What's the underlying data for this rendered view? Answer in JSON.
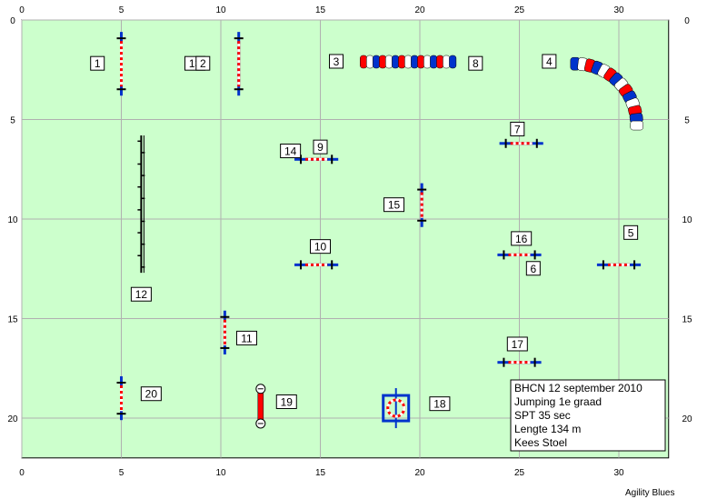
{
  "course": {
    "field_color": "#ccffcc",
    "grid_color": "#b0b0b0",
    "axis_range": {
      "x": [
        0,
        32.5
      ],
      "y": [
        0,
        22
      ]
    },
    "x_ticks": [
      0,
      5,
      10,
      15,
      20,
      25,
      30
    ],
    "y_ticks": [
      0,
      5,
      10,
      15,
      20
    ],
    "colors": {
      "post": "#0033cc",
      "red": "#ff0000",
      "white": "#ffffff",
      "ring_frame": "#0033cc"
    },
    "obstacles": [
      {
        "id": "1",
        "type": "jump",
        "x": 5.0,
        "y": 2.2,
        "orient": "v",
        "len": 3.2
      },
      {
        "id": "2",
        "type": "jump",
        "x": 10.9,
        "y": 2.2,
        "orient": "v",
        "len": 3.2
      },
      {
        "id": "3",
        "type": "tunnel_straight",
        "x1": 17.0,
        "x2": 21.8,
        "y": 2.1
      },
      {
        "id": "4",
        "type": "tunnel_curved",
        "cx": 27.8,
        "cy": 5.3,
        "r": 3.1
      },
      {
        "id": "5",
        "type": "jump",
        "x": 30.0,
        "y": 12.3,
        "orient": "h",
        "len": 2.2
      },
      {
        "id": "7",
        "type": "jump",
        "x": 25.1,
        "y": 6.2,
        "orient": "h",
        "len": 2.2
      },
      {
        "id": "9",
        "type": "jump",
        "x": 14.8,
        "y": 7.0,
        "orient": "h",
        "len": 2.2
      },
      {
        "id": "10",
        "type": "jump",
        "x": 14.8,
        "y": 12.3,
        "orient": "h",
        "len": 2.2
      },
      {
        "id": "11",
        "type": "jump",
        "x": 10.2,
        "y": 15.7,
        "orient": "v",
        "len": 2.2
      },
      {
        "id": "12",
        "type": "weave",
        "x": 6.0,
        "y1": 5.8,
        "y2": 12.7
      },
      {
        "id": "15",
        "type": "jump",
        "x": 20.1,
        "y": 9.3,
        "orient": "v",
        "len": 2.2
      },
      {
        "id": "16",
        "type": "jump",
        "x": 25.0,
        "y": 11.8,
        "orient": "h",
        "len": 2.2
      },
      {
        "id": "17",
        "type": "jump",
        "x": 25.0,
        "y": 17.2,
        "orient": "h",
        "len": 2.2
      },
      {
        "id": "18",
        "type": "tire",
        "x": 18.8,
        "y": 19.5
      },
      {
        "id": "19",
        "type": "table",
        "x": 12.0,
        "y1": 18.3,
        "y2": 20.5
      },
      {
        "id": "20",
        "type": "jump",
        "x": 5.0,
        "y": 19.0,
        "orient": "v",
        "len": 2.2
      }
    ],
    "labels": [
      {
        "text": "1",
        "x": 3.8,
        "y": 2.2
      },
      {
        "text": "13",
        "x": 8.7,
        "y": 2.2
      },
      {
        "text": "2",
        "x": 9.1,
        "y": 2.2
      },
      {
        "text": "3",
        "x": 15.8,
        "y": 2.1
      },
      {
        "text": "8",
        "x": 22.8,
        "y": 2.2
      },
      {
        "text": "4",
        "x": 26.5,
        "y": 2.1
      },
      {
        "text": "7",
        "x": 24.9,
        "y": 5.5
      },
      {
        "text": "14",
        "x": 13.5,
        "y": 6.6
      },
      {
        "text": "9",
        "x": 15.0,
        "y": 6.4
      },
      {
        "text": "15",
        "x": 18.7,
        "y": 9.3
      },
      {
        "text": "10",
        "x": 15.0,
        "y": 11.4
      },
      {
        "text": "16",
        "x": 25.1,
        "y": 11.0
      },
      {
        "text": "5",
        "x": 30.6,
        "y": 10.7
      },
      {
        "text": "6",
        "x": 25.7,
        "y": 12.5
      },
      {
        "text": "12",
        "x": 6.0,
        "y": 13.8
      },
      {
        "text": "11",
        "x": 11.3,
        "y": 16.0
      },
      {
        "text": "17",
        "x": 24.9,
        "y": 16.3
      },
      {
        "text": "20",
        "x": 6.5,
        "y": 18.8
      },
      {
        "text": "19",
        "x": 13.3,
        "y": 19.2
      },
      {
        "text": "18",
        "x": 21.0,
        "y": 19.3
      }
    ]
  },
  "info": {
    "lines": [
      "BHCN 12 september 2010",
      "Jumping 1e graad",
      "SPT 35 sec",
      "Lengte 134 m",
      "Kees Stoel"
    ]
  },
  "credit": "Agility Blues"
}
